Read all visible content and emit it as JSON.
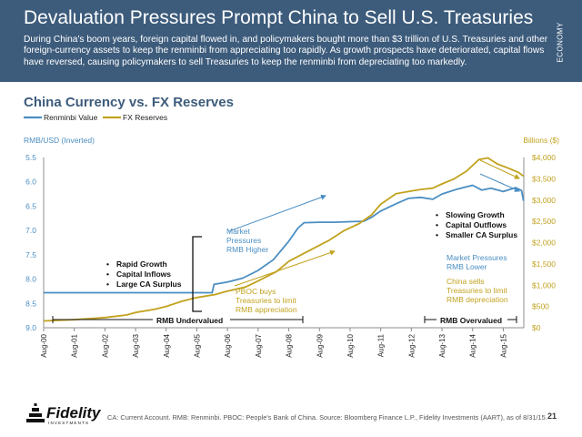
{
  "header": {
    "title": "Devaluation Pressures Prompt China to Sell U.S. Treasuries",
    "subtitle": "During China's boom years, foreign capital flowed in, and policymakers bought more than $3 trillion of U.S. Treasuries and other foreign-currency assets to keep the renminbi from appreciating too rapidly. As growth prospects have deteriorated, capital flows have reversed, causing policymakers to sell Treasuries to keep the renminbi from depreciating too markedly.",
    "side_tab": "ECONOMY",
    "bg_color": "#3d5c7c"
  },
  "chart_data": {
    "type": "line",
    "title": "China Currency vs. FX Reserves",
    "legend_position": "top-left",
    "left_axis": {
      "label": "RMB/USD (Inverted)",
      "ticks": [
        "5.5",
        "6.0",
        "6.5",
        "7.0",
        "7.5",
        "8.0",
        "8.5",
        "9.0"
      ],
      "range": [
        5.5,
        9.0
      ],
      "inverted": true
    },
    "right_axis": {
      "label": "Billions ($)",
      "ticks": [
        "$4,000",
        "$3,500",
        "$3,000",
        "$2,500",
        "$2,000",
        "$1,500",
        "$1,000",
        "$500",
        "$0"
      ],
      "range": [
        0,
        4000
      ]
    },
    "x_ticks": [
      "Aug-00",
      "Aug-01",
      "Aug-02",
      "Aug-03",
      "Aug-04",
      "Aug-05",
      "Aug-06",
      "Aug-07",
      "Aug-08",
      "Aug-09",
      "Aug-10",
      "Aug-11",
      "Aug-12",
      "Aug-13",
      "Aug-14",
      "Aug-15"
    ],
    "grid": false,
    "series": [
      {
        "name": "Renminbi Value",
        "color": "#4a8ec2",
        "axis": "left",
        "points": [
          [
            2000.0,
            8.28
          ],
          [
            2004.5,
            8.28
          ],
          [
            2005.5,
            8.28
          ],
          [
            2005.56,
            8.11
          ],
          [
            2006.0,
            8.06
          ],
          [
            2006.5,
            7.98
          ],
          [
            2007.0,
            7.82
          ],
          [
            2007.5,
            7.6
          ],
          [
            2008.0,
            7.22
          ],
          [
            2008.3,
            6.95
          ],
          [
            2008.5,
            6.84
          ],
          [
            2009.0,
            6.83
          ],
          [
            2009.5,
            6.83
          ],
          [
            2010.0,
            6.82
          ],
          [
            2010.45,
            6.81
          ],
          [
            2010.7,
            6.73
          ],
          [
            2011.0,
            6.6
          ],
          [
            2011.5,
            6.45
          ],
          [
            2011.9,
            6.34
          ],
          [
            2012.3,
            6.32
          ],
          [
            2012.7,
            6.36
          ],
          [
            2013.0,
            6.25
          ],
          [
            2013.5,
            6.15
          ],
          [
            2014.0,
            6.07
          ],
          [
            2014.3,
            6.17
          ],
          [
            2014.6,
            6.13
          ],
          [
            2015.0,
            6.2
          ],
          [
            2015.4,
            6.12
          ],
          [
            2015.6,
            6.18
          ],
          [
            2015.66,
            6.39
          ]
        ]
      },
      {
        "name": "FX Reserves",
        "color": "#c2a21e",
        "axis": "right",
        "points": [
          [
            2000.0,
            160
          ],
          [
            2001.0,
            190
          ],
          [
            2002.0,
            240
          ],
          [
            2002.7,
            300
          ],
          [
            2003.0,
            360
          ],
          [
            2003.6,
            430
          ],
          [
            2004.0,
            500
          ],
          [
            2004.5,
            620
          ],
          [
            2005.0,
            710
          ],
          [
            2005.6,
            780
          ],
          [
            2006.0,
            860
          ],
          [
            2006.6,
            960
          ],
          [
            2007.0,
            1100
          ],
          [
            2007.6,
            1320
          ],
          [
            2008.0,
            1560
          ],
          [
            2008.5,
            1750
          ],
          [
            2008.9,
            1900
          ],
          [
            2009.3,
            2050
          ],
          [
            2009.8,
            2280
          ],
          [
            2010.3,
            2450
          ],
          [
            2010.7,
            2650
          ],
          [
            2011.0,
            2900
          ],
          [
            2011.5,
            3150
          ],
          [
            2011.9,
            3200
          ],
          [
            2012.3,
            3250
          ],
          [
            2012.7,
            3280
          ],
          [
            2013.0,
            3380
          ],
          [
            2013.4,
            3500
          ],
          [
            2013.8,
            3680
          ],
          [
            2014.2,
            3950
          ],
          [
            2014.5,
            3990
          ],
          [
            2014.8,
            3850
          ],
          [
            2015.2,
            3740
          ],
          [
            2015.5,
            3650
          ],
          [
            2015.66,
            3560
          ]
        ]
      }
    ],
    "annotations": {
      "left_bullets": [
        "Rapid Growth",
        "Capital Inflows",
        "Large CA Surplus"
      ],
      "right_bullets": [
        "Slowing Growth",
        "Capital Outflows",
        "Smaller CA Surplus"
      ],
      "market_higher": [
        "Market",
        "Pressures",
        "RMB Higher"
      ],
      "pboc_buys": [
        "PBOC buys",
        "Treasuries to limit",
        "RMB appreciation"
      ],
      "market_lower": [
        "Market Pressures",
        "RMB Lower"
      ],
      "china_sells": [
        "China sells",
        "Treasuries to limit",
        "RMB depreciation"
      ],
      "undervalued": "RMB Undervalued",
      "overvalued": "RMB Overvalued"
    }
  },
  "footer": {
    "logo_text": "Fidelity",
    "logo_sub": "INVESTMENTS",
    "footnote": "CA: Current Account. RMB: Renminbi. PBOC: People's Bank of China. Source: Bloomberg Finance L.P., Fidelity Investments (AART), as of 8/31/15.",
    "page": "21"
  }
}
